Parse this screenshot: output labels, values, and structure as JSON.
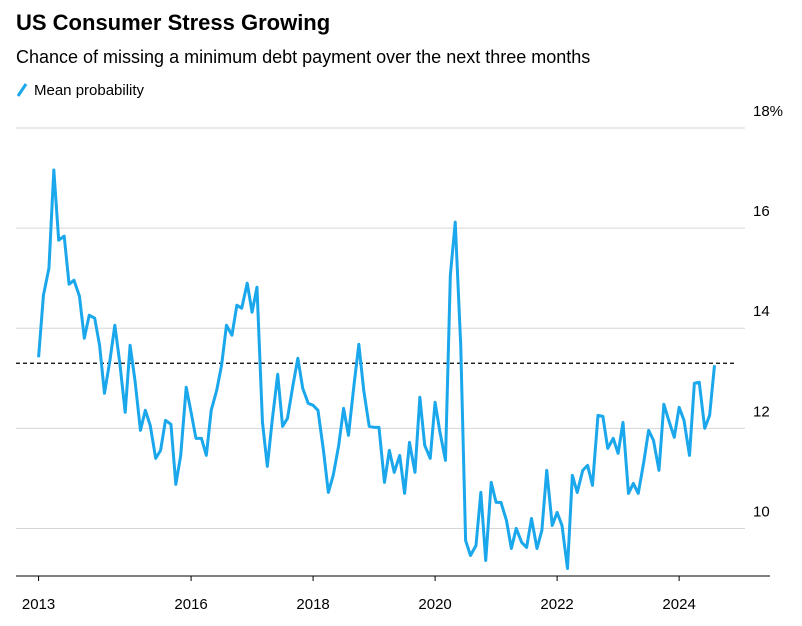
{
  "chart_data": {
    "type": "line",
    "title": "US Consumer Stress Growing",
    "subtitle": "Chance of missing a minimum debt payment over the next three months",
    "xlim": [
      2013.13,
      2025.08
    ],
    "ylim": [
      9.05,
      18
    ],
    "yticks": [
      {
        "value": 18,
        "label": "18%"
      },
      16,
      14,
      12,
      10
    ],
    "xticks": [
      {
        "value": 2013.5,
        "label": "2013"
      },
      2016,
      2018,
      2020,
      2022,
      2024
    ],
    "grid": true,
    "reference_line": 13.3,
    "x": [
      2013.5,
      2013.58,
      2013.67,
      2013.75,
      2013.83,
      2013.92,
      2014,
      2014.08,
      2014.17,
      2014.25,
      2014.33,
      2014.42,
      2014.5,
      2014.58,
      2014.67,
      2014.75,
      2014.83,
      2014.92,
      2015,
      2015.08,
      2015.17,
      2015.25,
      2015.33,
      2015.42,
      2015.5,
      2015.58,
      2015.67,
      2015.75,
      2015.83,
      2015.92,
      2016,
      2016.08,
      2016.17,
      2016.25,
      2016.33,
      2016.42,
      2016.5,
      2016.58,
      2016.67,
      2016.75,
      2016.83,
      2016.92,
      2017,
      2017.08,
      2017.17,
      2017.25,
      2017.33,
      2017.42,
      2017.5,
      2017.58,
      2017.67,
      2017.75,
      2017.83,
      2017.92,
      2018,
      2018.08,
      2018.17,
      2018.25,
      2018.33,
      2018.42,
      2018.5,
      2018.58,
      2018.67,
      2018.75,
      2018.83,
      2018.92,
      2019,
      2019.08,
      2019.17,
      2019.25,
      2019.33,
      2019.42,
      2019.5,
      2019.58,
      2019.67,
      2019.75,
      2019.83,
      2019.92,
      2020,
      2020.08,
      2020.17,
      2020.25,
      2020.33,
      2020.42,
      2020.5,
      2020.58,
      2020.67,
      2020.75,
      2020.83,
      2020.92,
      2021,
      2021.08,
      2021.17,
      2021.25,
      2021.33,
      2021.42,
      2021.5,
      2021.58,
      2021.67,
      2021.75,
      2021.83,
      2021.92,
      2022,
      2022.08,
      2022.17,
      2022.25,
      2022.33,
      2022.42,
      2022.5,
      2022.58,
      2022.67,
      2022.75,
      2022.83,
      2022.92,
      2023,
      2023.08,
      2023.17,
      2023.25,
      2023.33,
      2023.42,
      2023.5,
      2023.58,
      2023.67,
      2023.75,
      2023.83,
      2023.92,
      2024,
      2024.08,
      2024.17,
      2024.25,
      2024.33,
      2024.42,
      2024.5,
      2024.58
    ],
    "series": [
      {
        "name": "Mean probability",
        "color": "#1aa7ec",
        "values": [
          13.42,
          14.66,
          15.2,
          17.16,
          15.76,
          15.84,
          14.88,
          14.96,
          14.64,
          13.8,
          14.26,
          14.2,
          13.66,
          12.7,
          13.36,
          14.06,
          13.32,
          12.32,
          13.66,
          12.96,
          11.96,
          12.36,
          12.06,
          11.4,
          11.56,
          12.16,
          12.08,
          10.88,
          11.46,
          12.82,
          12.32,
          11.8,
          11.8,
          11.46,
          12.36,
          12.76,
          13.26,
          14.06,
          13.86,
          14.46,
          14.4,
          14.9,
          14.32,
          14.82,
          12.12,
          11.24,
          12.16,
          13.08,
          12.04,
          12.2,
          12.86,
          13.4,
          12.8,
          12.5,
          12.46,
          12.36,
          11.56,
          10.72,
          11.06,
          11.66,
          12.4,
          11.86,
          12.86,
          13.68,
          12.76,
          12.04,
          12.02,
          12.02,
          10.92,
          11.56,
          11.12,
          11.46,
          10.7,
          11.72,
          11.12,
          12.62,
          11.66,
          11.4,
          12.52,
          11.92,
          11.36,
          15.06,
          16.12,
          13.66,
          9.76,
          9.46,
          9.66,
          10.72,
          9.36,
          10.92,
          10.52,
          10.52,
          10.16,
          9.6,
          10.0,
          9.72,
          9.62,
          10.2,
          9.6,
          9.96,
          11.16,
          10.06,
          10.32,
          10.06,
          9.2,
          11.06,
          10.72,
          11.16,
          11.26,
          10.86,
          12.26,
          12.24,
          11.6,
          11.8,
          11.5,
          12.12,
          10.7,
          10.9,
          10.7,
          11.32,
          11.96,
          11.76,
          11.16,
          12.48,
          12.16,
          11.82,
          12.42,
          12.16,
          11.46,
          12.9,
          12.92,
          12.0,
          12.26,
          13.26
        ]
      }
    ]
  }
}
